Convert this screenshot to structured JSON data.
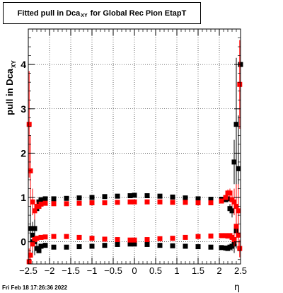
{
  "chart_data": {
    "type": "scatter",
    "title": {
      "main": "Fitted pull in Dca",
      "subscript": "XY",
      "suffix": "for Global Rec Pion EtapT"
    },
    "xlabel": "η",
    "ylabel": {
      "main": "pull in Dca",
      "subscript": "XY"
    },
    "xlim": [
      -2.5,
      2.5
    ],
    "ylim": [
      -0.5,
      4.8
    ],
    "grid": true,
    "x_ticks": [
      {
        "value": -2.5,
        "label": "−2.5"
      },
      {
        "value": -2,
        "label": "−2"
      },
      {
        "value": -1.5,
        "label": "−1.5"
      },
      {
        "value": -1,
        "label": "−1"
      },
      {
        "value": -0.5,
        "label": "−0.5"
      },
      {
        "value": 0,
        "label": "0"
      },
      {
        "value": 0.5,
        "label": "0.5"
      },
      {
        "value": 1,
        "label": "1"
      },
      {
        "value": 1.5,
        "label": "1.5"
      },
      {
        "value": 2,
        "label": "2"
      },
      {
        "value": 2.5,
        "label": "2.5"
      }
    ],
    "y_ticks": [
      {
        "value": 0,
        "label": "0"
      },
      {
        "value": 1,
        "label": "1"
      },
      {
        "value": 2,
        "label": "2"
      },
      {
        "value": 3,
        "label": "3"
      },
      {
        "value": 4,
        "label": "4"
      }
    ],
    "series": [
      {
        "color": "#000000",
        "x": [
          -2.45,
          -2.4,
          -2.35,
          -2.3,
          -2.25,
          -2.2,
          -2.1,
          -1.9,
          -1.6,
          -1.3,
          -1.0,
          -0.7,
          -0.4,
          -0.1,
          0.0,
          0.3,
          0.6,
          0.9,
          1.2,
          1.5,
          1.8,
          2.05,
          2.15,
          2.2,
          2.25,
          2.3,
          2.35,
          2.4,
          2.45,
          2.5
        ],
        "y": [
          0.3,
          0.0,
          0.3,
          0.75,
          0.9,
          0.95,
          0.97,
          0.97,
          0.98,
          0.99,
          1.0,
          1.02,
          1.03,
          1.04,
          1.05,
          1.04,
          1.03,
          1.01,
          0.99,
          0.97,
          0.96,
          0.96,
          0.95,
          0.97,
          0.75,
          0.7,
          1.8,
          2.65,
          1.65,
          4.0
        ],
        "err": [
          0.6,
          0.3,
          0.4,
          0.1,
          0.05,
          0.03,
          0.02,
          0.02,
          0.02,
          0.02,
          0.02,
          0.02,
          0.02,
          0.02,
          0.02,
          0.02,
          0.02,
          0.02,
          0.02,
          0.02,
          0.02,
          0.02,
          0.03,
          0.05,
          0.1,
          0.15,
          0.5,
          1.5,
          1.2,
          0.5
        ]
      },
      {
        "color": "#000000",
        "x": [
          -2.4,
          -2.35,
          -2.3,
          -2.25,
          -2.2,
          -2.1,
          -1.9,
          -1.6,
          -1.3,
          -1.0,
          -0.7,
          -0.4,
          -0.1,
          0.0,
          0.3,
          0.6,
          0.9,
          1.2,
          1.5,
          1.8,
          2.05,
          2.15,
          2.2,
          2.25,
          2.3,
          2.35,
          2.4
        ],
        "y": [
          0.15,
          0.0,
          -0.15,
          -0.2,
          -0.1,
          -0.08,
          -0.12,
          -0.12,
          -0.11,
          -0.1,
          -0.08,
          -0.06,
          -0.05,
          -0.05,
          -0.06,
          -0.08,
          -0.09,
          -0.1,
          -0.11,
          -0.12,
          -0.13,
          -0.14,
          -0.15,
          -0.12,
          -0.1,
          -0.05,
          0.25
        ],
        "err": [
          0.3,
          0.3,
          0.1,
          0.05,
          0.03,
          0.02,
          0.02,
          0.02,
          0.02,
          0.02,
          0.02,
          0.02,
          0.02,
          0.02,
          0.02,
          0.02,
          0.02,
          0.02,
          0.02,
          0.02,
          0.02,
          0.02,
          0.03,
          0.05,
          0.1,
          0.2,
          0.4
        ]
      },
      {
        "color": "#ff0000",
        "x": [
          -2.48,
          -2.45,
          -2.4,
          -2.35,
          -2.3,
          -2.25,
          -2.2,
          -2.1,
          -1.9,
          -1.6,
          -1.3,
          -1.0,
          -0.7,
          -0.4,
          -0.1,
          0.0,
          0.3,
          0.6,
          0.9,
          1.2,
          1.5,
          1.8,
          2.05,
          2.15,
          2.2,
          2.25,
          2.3,
          2.35,
          2.4,
          2.45,
          2.48
        ],
        "y": [
          2.65,
          1.6,
          0.9,
          0.7,
          0.8,
          0.8,
          0.85,
          0.87,
          0.86,
          0.86,
          0.87,
          0.88,
          0.88,
          0.89,
          0.9,
          0.9,
          0.9,
          0.9,
          0.89,
          0.89,
          0.88,
          0.88,
          0.92,
          1.0,
          1.1,
          1.1,
          0.95,
          0.9,
          0.8,
          0.7,
          3.55
        ],
        "err": [
          1.2,
          0.8,
          0.3,
          0.2,
          0.1,
          0.05,
          0.03,
          0.02,
          0.02,
          0.02,
          0.02,
          0.02,
          0.02,
          0.02,
          0.02,
          0.02,
          0.02,
          0.02,
          0.02,
          0.02,
          0.02,
          0.02,
          0.03,
          0.05,
          0.08,
          0.1,
          0.15,
          0.3,
          0.5,
          0.6,
          1.0
        ]
      },
      {
        "color": "#ff0000",
        "x": [
          -2.48,
          -2.45,
          -2.4,
          -2.35,
          -2.3,
          -2.2,
          -2.1,
          -1.9,
          -1.6,
          -1.3,
          -1.0,
          -0.7,
          -0.4,
          -0.1,
          0.0,
          0.3,
          0.6,
          0.9,
          1.2,
          1.5,
          1.8,
          2.05,
          2.15,
          2.2,
          2.25,
          2.3,
          2.35,
          2.4,
          2.45,
          2.48
        ],
        "y": [
          -0.45,
          -0.3,
          -0.05,
          0.05,
          0.08,
          0.1,
          0.11,
          0.12,
          0.12,
          0.1,
          0.08,
          0.06,
          0.05,
          0.04,
          0.04,
          0.05,
          0.07,
          0.08,
          0.1,
          0.12,
          0.13,
          0.14,
          0.14,
          0.13,
          0.14,
          0.1,
          0.05,
          0.35,
          0.15,
          -0.15
        ],
        "err": [
          0.3,
          0.3,
          0.15,
          0.08,
          0.05,
          0.03,
          0.02,
          0.02,
          0.02,
          0.02,
          0.02,
          0.02,
          0.02,
          0.02,
          0.02,
          0.02,
          0.02,
          0.02,
          0.02,
          0.02,
          0.02,
          0.02,
          0.03,
          0.04,
          0.05,
          0.08,
          0.15,
          0.4,
          0.3,
          0.2
        ]
      }
    ]
  },
  "footer": {
    "timestamp": "Fri Feb 18 17:26:36 2022"
  }
}
